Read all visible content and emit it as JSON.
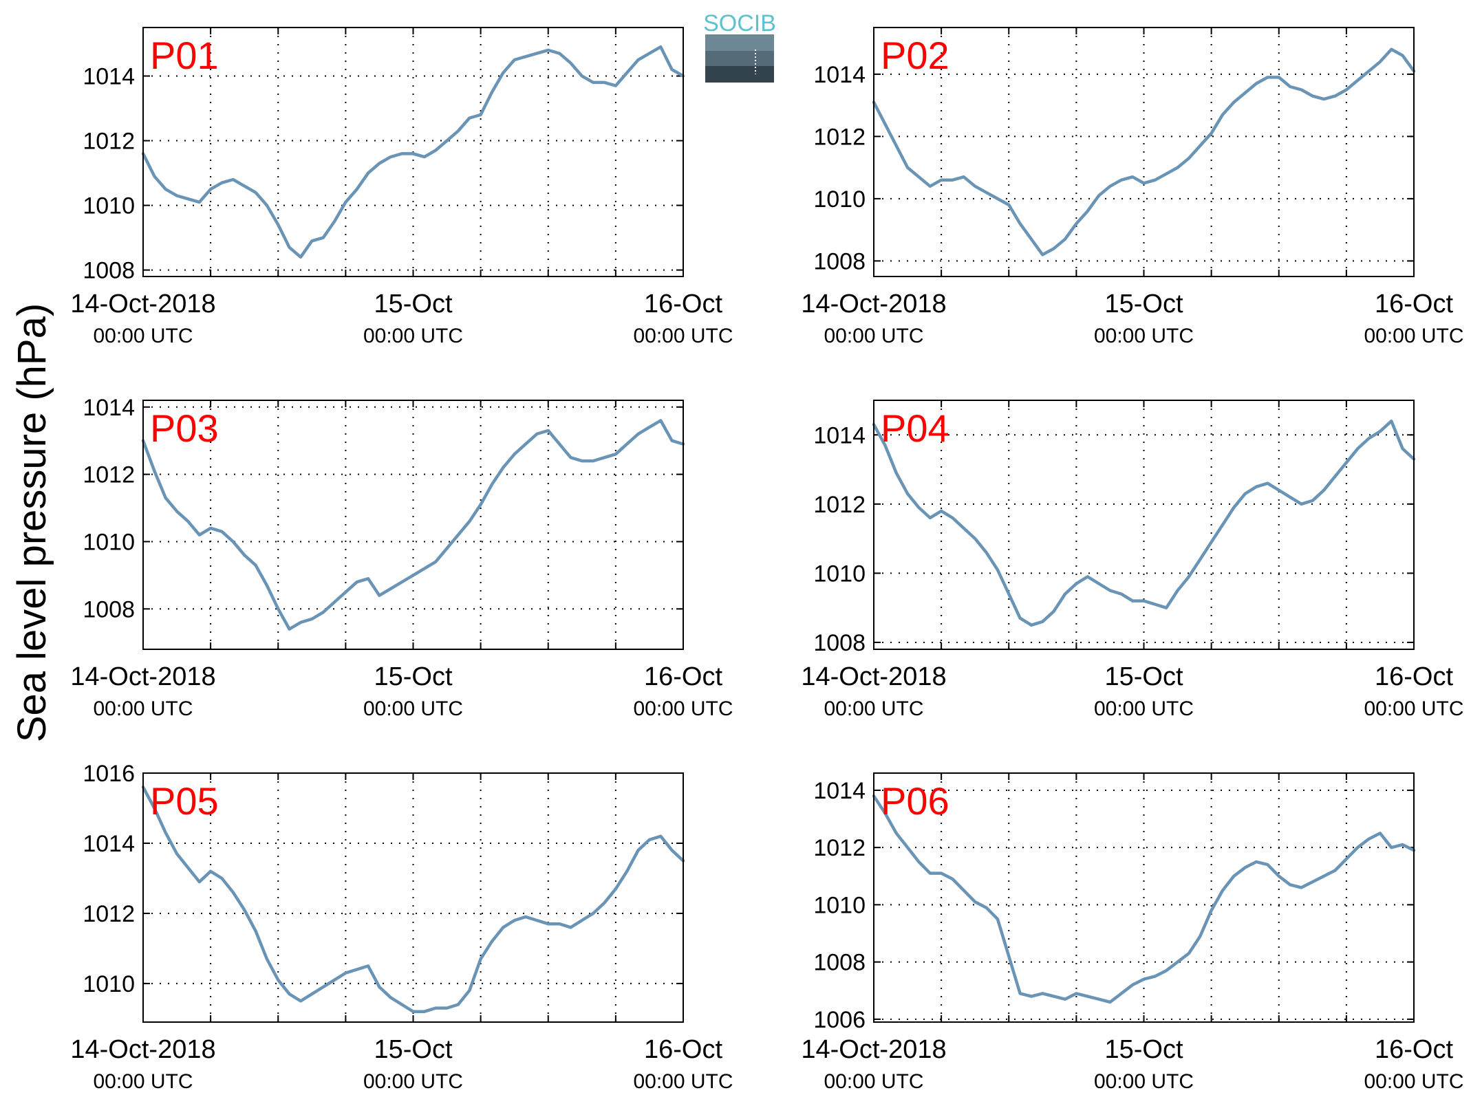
{
  "chart_data": {
    "type": "line",
    "ylabel": "Sea level pressure (hPa)",
    "logo_text": "SOCIB",
    "line_color": "#6a94b6",
    "label_color": "#ff0000",
    "x_tick_dates": [
      "14-Oct-2018",
      "15-Oct",
      "16-Oct"
    ],
    "x_tick_times": [
      "00:00 UTC",
      "00:00 UTC",
      "00:00 UTC"
    ],
    "x_range_hours": [
      0,
      48
    ],
    "grid": "dotted",
    "panels": [
      {
        "label": "P01",
        "ylim": [
          1007.8,
          1015.5
        ],
        "yticks": [
          1008,
          1010,
          1012,
          1014
        ],
        "x": [
          0,
          1,
          2,
          3,
          4,
          5,
          6,
          7,
          8,
          9,
          10,
          11,
          12,
          13,
          14,
          15,
          16,
          17,
          18,
          19,
          20,
          21,
          22,
          23,
          24,
          25,
          26,
          27,
          28,
          29,
          30,
          31,
          32,
          33,
          34,
          35,
          36,
          37,
          38,
          39,
          40,
          41,
          42,
          43,
          44,
          45,
          46,
          47,
          48
        ],
        "y": [
          1011.6,
          1010.9,
          1010.5,
          1010.3,
          1010.2,
          1010.1,
          1010.5,
          1010.7,
          1010.8,
          1010.6,
          1010.4,
          1010.0,
          1009.4,
          1008.7,
          1008.4,
          1008.9,
          1009.0,
          1009.5,
          1010.1,
          1010.5,
          1011.0,
          1011.3,
          1011.5,
          1011.6,
          1011.6,
          1011.5,
          1011.7,
          1012.0,
          1012.3,
          1012.7,
          1012.8,
          1013.5,
          1014.1,
          1014.5,
          1014.6,
          1014.7,
          1014.8,
          1014.7,
          1014.4,
          1014.0,
          1013.8,
          1013.8,
          1013.7,
          1014.1,
          1014.5,
          1014.7,
          1014.9,
          1014.2,
          1014.0
        ]
      },
      {
        "label": "P02",
        "ylim": [
          1007.5,
          1015.5
        ],
        "yticks": [
          1008,
          1010,
          1012,
          1014
        ],
        "x": [
          0,
          1,
          2,
          3,
          4,
          5,
          6,
          7,
          8,
          9,
          10,
          11,
          12,
          13,
          14,
          15,
          16,
          17,
          18,
          19,
          20,
          21,
          22,
          23,
          24,
          25,
          26,
          27,
          28,
          29,
          30,
          31,
          32,
          33,
          34,
          35,
          36,
          37,
          38,
          39,
          40,
          41,
          42,
          43,
          44,
          45,
          46,
          47,
          48
        ],
        "y": [
          1013.1,
          1012.4,
          1011.7,
          1011.0,
          1010.7,
          1010.4,
          1010.6,
          1010.6,
          1010.7,
          1010.4,
          1010.2,
          1010.0,
          1009.8,
          1009.2,
          1008.7,
          1008.2,
          1008.4,
          1008.7,
          1009.2,
          1009.6,
          1010.1,
          1010.4,
          1010.6,
          1010.7,
          1010.5,
          1010.6,
          1010.8,
          1011.0,
          1011.3,
          1011.7,
          1012.1,
          1012.7,
          1013.1,
          1013.4,
          1013.7,
          1013.9,
          1013.9,
          1013.6,
          1013.5,
          1013.3,
          1013.2,
          1013.3,
          1013.5,
          1013.8,
          1014.1,
          1014.4,
          1014.8,
          1014.6,
          1014.1
        ]
      },
      {
        "label": "P03",
        "ylim": [
          1006.8,
          1014.2
        ],
        "yticks": [
          1008,
          1010,
          1012,
          1014
        ],
        "x": [
          0,
          1,
          2,
          3,
          4,
          5,
          6,
          7,
          8,
          9,
          10,
          11,
          12,
          13,
          14,
          15,
          16,
          17,
          18,
          19,
          20,
          21,
          22,
          23,
          24,
          25,
          26,
          27,
          28,
          29,
          30,
          31,
          32,
          33,
          34,
          35,
          36,
          37,
          38,
          39,
          40,
          41,
          42,
          43,
          44,
          45,
          46,
          47,
          48
        ],
        "y": [
          1013.0,
          1012.1,
          1011.3,
          1010.9,
          1010.6,
          1010.2,
          1010.4,
          1010.3,
          1010.0,
          1009.6,
          1009.3,
          1008.7,
          1008.0,
          1007.4,
          1007.6,
          1007.7,
          1007.9,
          1008.2,
          1008.5,
          1008.8,
          1008.9,
          1008.4,
          1008.6,
          1008.8,
          1009.0,
          1009.2,
          1009.4,
          1009.8,
          1010.2,
          1010.6,
          1011.1,
          1011.7,
          1012.2,
          1012.6,
          1012.9,
          1013.2,
          1013.3,
          1012.9,
          1012.5,
          1012.4,
          1012.4,
          1012.5,
          1012.6,
          1012.9,
          1013.2,
          1013.4,
          1013.6,
          1013.0,
          1012.9
        ]
      },
      {
        "label": "P04",
        "ylim": [
          1007.8,
          1015.0
        ],
        "yticks": [
          1008,
          1010,
          1012,
          1014
        ],
        "x": [
          0,
          1,
          2,
          3,
          4,
          5,
          6,
          7,
          8,
          9,
          10,
          11,
          12,
          13,
          14,
          15,
          16,
          17,
          18,
          19,
          20,
          21,
          22,
          23,
          24,
          25,
          26,
          27,
          28,
          29,
          30,
          31,
          32,
          33,
          34,
          35,
          36,
          37,
          38,
          39,
          40,
          41,
          42,
          43,
          44,
          45,
          46,
          47,
          48
        ],
        "y": [
          1014.3,
          1013.7,
          1012.9,
          1012.3,
          1011.9,
          1011.6,
          1011.8,
          1011.6,
          1011.3,
          1011.0,
          1010.6,
          1010.1,
          1009.4,
          1008.7,
          1008.5,
          1008.6,
          1008.9,
          1009.4,
          1009.7,
          1009.9,
          1009.7,
          1009.5,
          1009.4,
          1009.2,
          1009.2,
          1009.1,
          1009.0,
          1009.5,
          1009.9,
          1010.4,
          1010.9,
          1011.4,
          1011.9,
          1012.3,
          1012.5,
          1012.6,
          1012.4,
          1012.2,
          1012.0,
          1012.1,
          1012.4,
          1012.8,
          1013.2,
          1013.6,
          1013.9,
          1014.1,
          1014.4,
          1013.6,
          1013.3
        ]
      },
      {
        "label": "P05",
        "ylim": [
          1008.9,
          1016.0
        ],
        "yticks": [
          1010,
          1012,
          1014,
          1016
        ],
        "x": [
          0,
          1,
          2,
          3,
          4,
          5,
          6,
          7,
          8,
          9,
          10,
          11,
          12,
          13,
          14,
          15,
          16,
          17,
          18,
          19,
          20,
          21,
          22,
          23,
          24,
          25,
          26,
          27,
          28,
          29,
          30,
          31,
          32,
          33,
          34,
          35,
          36,
          37,
          38,
          39,
          40,
          41,
          42,
          43,
          44,
          45,
          46,
          47,
          48
        ],
        "y": [
          1015.6,
          1015.0,
          1014.3,
          1013.7,
          1013.3,
          1012.9,
          1013.2,
          1013.0,
          1012.6,
          1012.1,
          1011.5,
          1010.7,
          1010.1,
          1009.7,
          1009.5,
          1009.7,
          1009.9,
          1010.1,
          1010.3,
          1010.4,
          1010.5,
          1009.9,
          1009.6,
          1009.4,
          1009.2,
          1009.2,
          1009.3,
          1009.3,
          1009.4,
          1009.8,
          1010.7,
          1011.2,
          1011.6,
          1011.8,
          1011.9,
          1011.8,
          1011.7,
          1011.7,
          1011.6,
          1011.8,
          1012.0,
          1012.3,
          1012.7,
          1013.2,
          1013.8,
          1014.1,
          1014.2,
          1013.8,
          1013.5
        ]
      },
      {
        "label": "P06",
        "ylim": [
          1005.9,
          1014.6
        ],
        "yticks": [
          1006,
          1008,
          1010,
          1012,
          1014
        ],
        "x": [
          0,
          1,
          2,
          3,
          4,
          5,
          6,
          7,
          8,
          9,
          10,
          11,
          12,
          13,
          14,
          15,
          16,
          17,
          18,
          19,
          20,
          21,
          22,
          23,
          24,
          25,
          26,
          27,
          28,
          29,
          30,
          31,
          32,
          33,
          34,
          35,
          36,
          37,
          38,
          39,
          40,
          41,
          42,
          43,
          44,
          45,
          46,
          47,
          48
        ],
        "y": [
          1013.8,
          1013.2,
          1012.5,
          1012.0,
          1011.5,
          1011.1,
          1011.1,
          1010.9,
          1010.5,
          1010.1,
          1009.9,
          1009.5,
          1008.2,
          1006.9,
          1006.8,
          1006.9,
          1006.8,
          1006.7,
          1006.9,
          1006.8,
          1006.7,
          1006.6,
          1006.9,
          1007.2,
          1007.4,
          1007.5,
          1007.7,
          1008.0,
          1008.3,
          1008.9,
          1009.8,
          1010.5,
          1011.0,
          1011.3,
          1011.5,
          1011.4,
          1011.0,
          1010.7,
          1010.6,
          1010.8,
          1011.0,
          1011.2,
          1011.6,
          1012.0,
          1012.3,
          1012.5,
          1012.0,
          1012.1,
          1011.9
        ]
      }
    ]
  }
}
